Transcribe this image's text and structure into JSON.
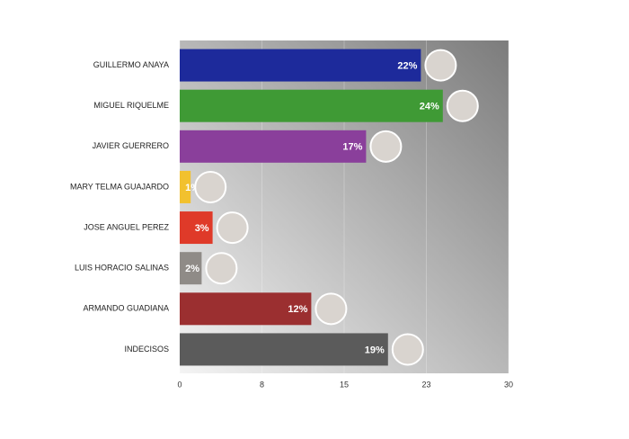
{
  "chart_data": {
    "type": "bar",
    "orientation": "horizontal",
    "categories": [
      "GUILLERMO ANAYA",
      "MIGUEL RIQUELME",
      "JAVIER GUERRERO",
      "MARY TELMA GUAJARDO",
      "JOSE ANGUEL PEREZ",
      "LUIS HORACIO SALINAS",
      "ARMANDO GUADIANA",
      "INDECISOS"
    ],
    "values": [
      22,
      24,
      17,
      1,
      3,
      2,
      12,
      19
    ],
    "value_labels": [
      "22%",
      "24%",
      "17%",
      "1%",
      "3%",
      "2%",
      "12%",
      "19%"
    ],
    "colors": [
      "#1d2a9b",
      "#3f9a35",
      "#8a3f9b",
      "#f2c12e",
      "#df3a29",
      "#8f8b87",
      "#9b2f30",
      "#5b5b5b"
    ],
    "xlim": [
      0,
      30
    ],
    "xticks": [
      0,
      {
        "value": 7.5,
        "label": "8"
      },
      15,
      {
        "value": 22.5,
        "label": "23"
      },
      30
    ],
    "grid": true
  }
}
